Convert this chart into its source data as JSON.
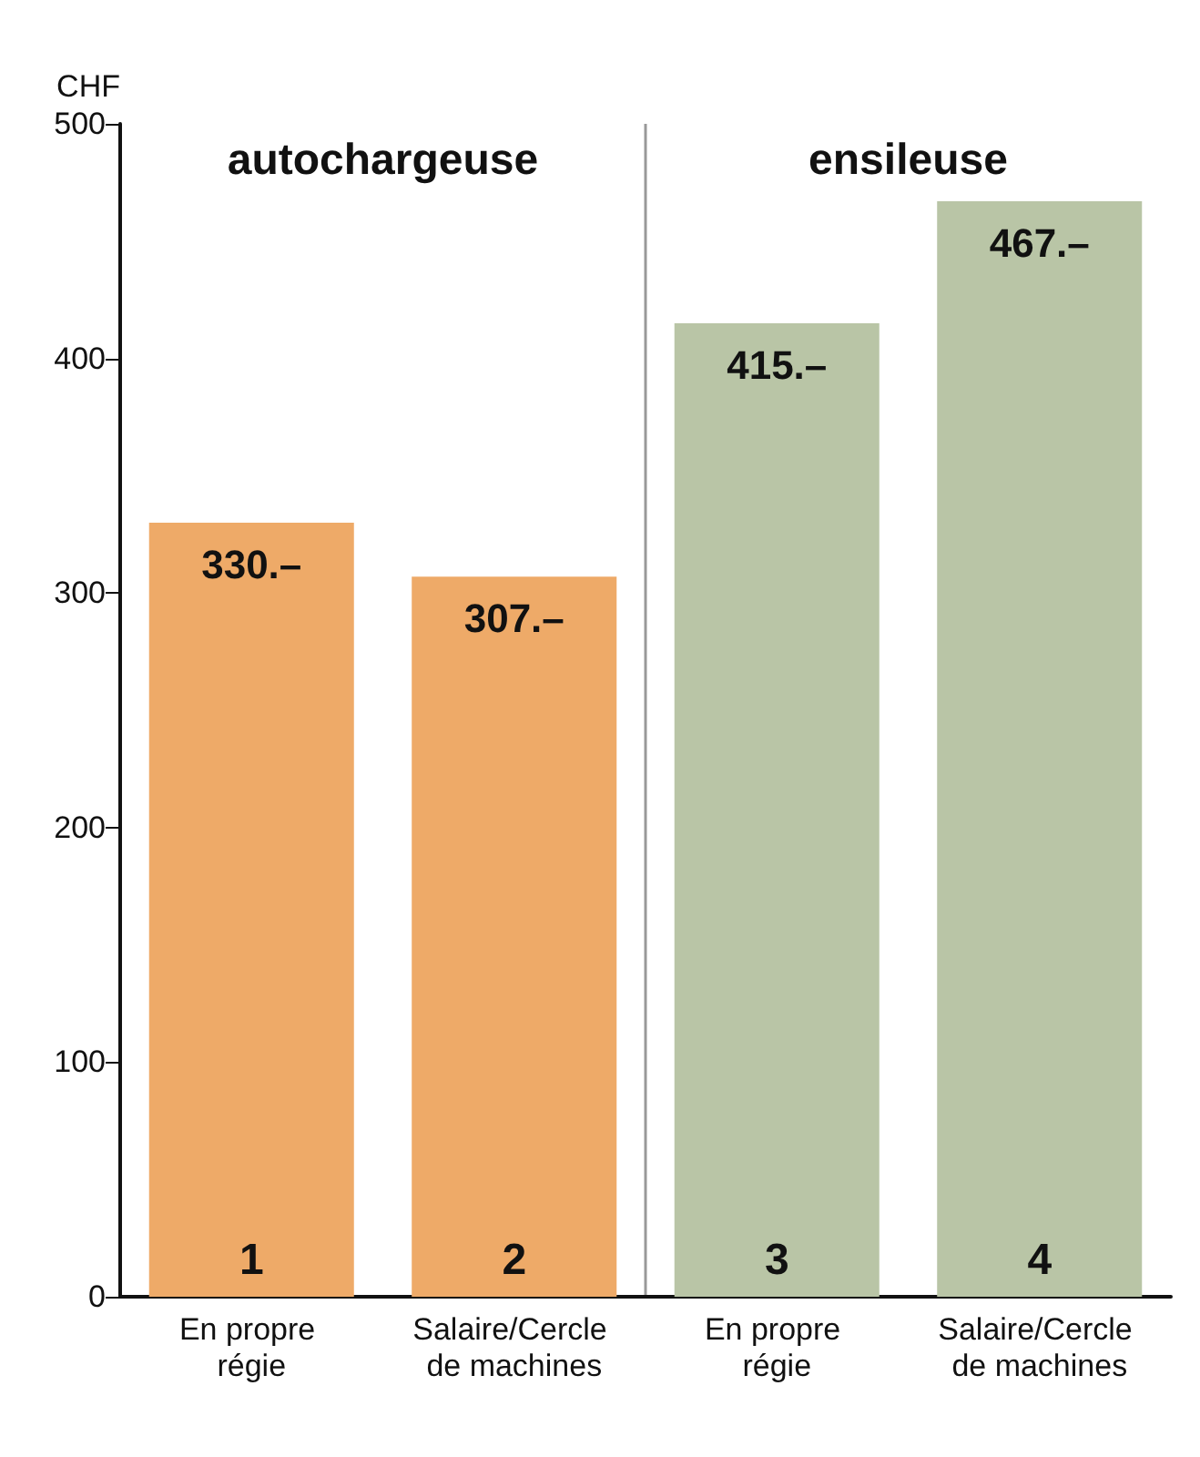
{
  "chart_data": {
    "type": "bar",
    "ylabel": "CHF",
    "categories": [
      "En propre régie",
      "Salaire/Cercle de machines",
      "En propre régie",
      "Salaire/Cercle de machines"
    ],
    "values": [
      330,
      307,
      415,
      467
    ],
    "colors": [
      "#eeaa68",
      "#eeaa68",
      "#b9c5a6",
      "#b9c5a6"
    ],
    "value_labels": [
      "330.–",
      "307.–",
      "415.–",
      "467.–"
    ],
    "ylim": [
      0,
      500
    ],
    "yticks": [
      0,
      100,
      200,
      300,
      400,
      500
    ],
    "grid": false,
    "annotations": [
      "autochargeuse",
      "ensileuse",
      "1",
      "2",
      "3",
      "4"
    ]
  }
}
